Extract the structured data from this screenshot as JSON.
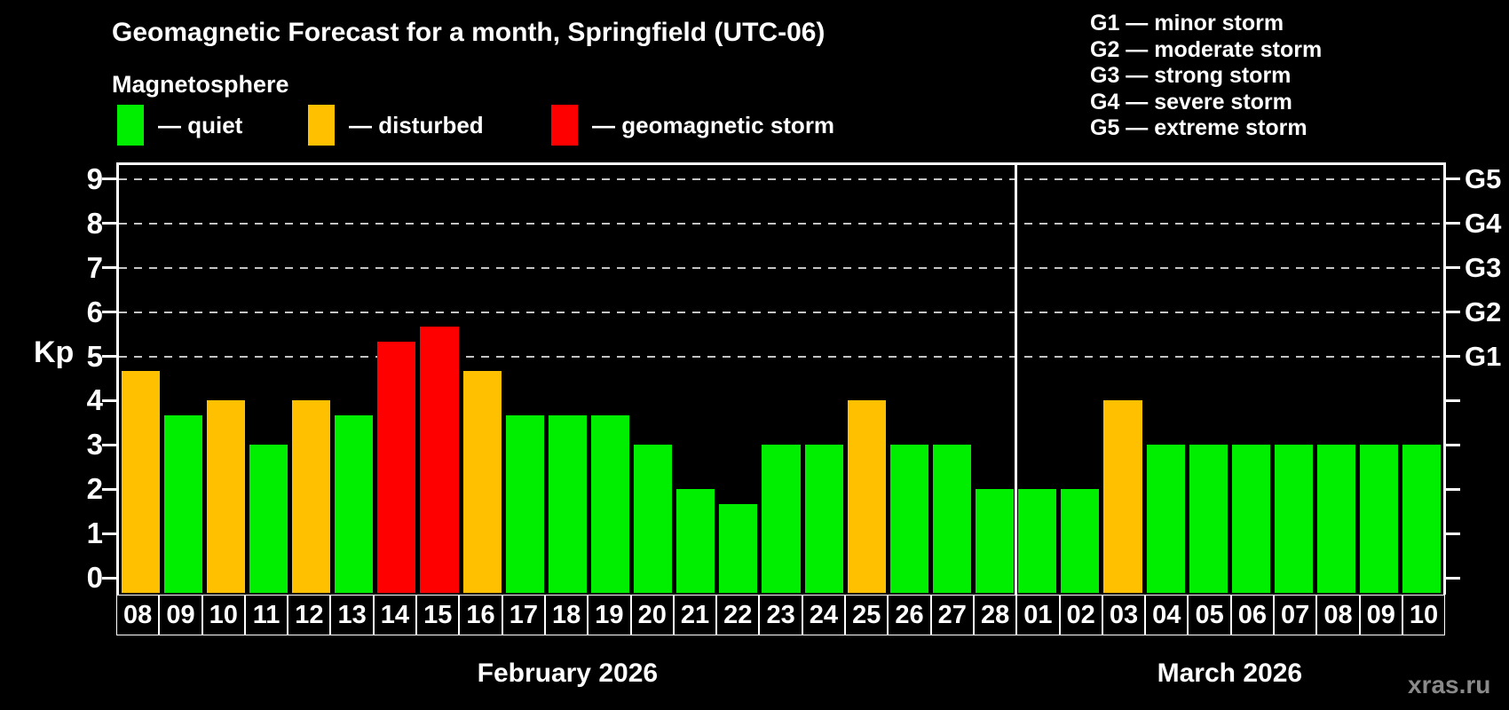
{
  "header": {
    "title": "Geomagnetic Forecast for a month, Springfield (UTC-06)",
    "subtitle": "Magnetosphere"
  },
  "legend": {
    "items": [
      {
        "key": "quiet",
        "label": "— quiet",
        "color": "#00EE00"
      },
      {
        "key": "disturbed",
        "label": "— disturbed",
        "color": "#FFC000"
      },
      {
        "key": "storm",
        "label": "— geomagnetic storm",
        "color": "#FF0000"
      }
    ]
  },
  "g_legend": {
    "items": [
      "G1 — minor storm",
      "G2 — moderate storm",
      "G3 — strong storm",
      "G4 — severe storm",
      "G5 — extreme storm"
    ]
  },
  "watermark": "xras.ru",
  "chart_data": {
    "type": "bar",
    "title": "Geomagnetic Forecast for a month, Springfield (UTC-06)",
    "ylabel": "Kp",
    "ylim": [
      0,
      9
    ],
    "yticks": [
      0,
      1,
      2,
      3,
      4,
      5,
      6,
      7,
      8,
      9
    ],
    "gridlines_at": [
      5,
      6,
      7,
      8,
      9
    ],
    "right_axis_labels": [
      {
        "kp": 5,
        "label": "G1"
      },
      {
        "kp": 6,
        "label": "G2"
      },
      {
        "kp": 7,
        "label": "G3"
      },
      {
        "kp": 8,
        "label": "G4"
      },
      {
        "kp": 9,
        "label": "G5"
      }
    ],
    "categories": [
      "08",
      "09",
      "10",
      "11",
      "12",
      "13",
      "14",
      "15",
      "16",
      "17",
      "18",
      "19",
      "20",
      "21",
      "22",
      "23",
      "24",
      "25",
      "26",
      "27",
      "28",
      "01",
      "02",
      "03",
      "04",
      "05",
      "06",
      "07",
      "08",
      "09",
      "10"
    ],
    "values": [
      4.67,
      3.67,
      4,
      3,
      4,
      3.67,
      5.33,
      5.67,
      4.67,
      3.67,
      3.67,
      3.67,
      3,
      2,
      1.67,
      3,
      3,
      4,
      3,
      3,
      2,
      2,
      2,
      4,
      3,
      3,
      3,
      3,
      3,
      3,
      3
    ],
    "status": [
      "disturbed",
      "quiet",
      "disturbed",
      "quiet",
      "disturbed",
      "quiet",
      "storm",
      "storm",
      "disturbed",
      "quiet",
      "quiet",
      "quiet",
      "quiet",
      "quiet",
      "quiet",
      "quiet",
      "quiet",
      "disturbed",
      "quiet",
      "quiet",
      "quiet",
      "quiet",
      "quiet",
      "disturbed",
      "quiet",
      "quiet",
      "quiet",
      "quiet",
      "quiet",
      "quiet",
      "quiet"
    ],
    "status_colors": {
      "quiet": "#00EE00",
      "disturbed": "#FFC000",
      "storm": "#FF0000"
    },
    "months": [
      {
        "label": "February 2026",
        "from": 0,
        "to": 20
      },
      {
        "label": "March 2026",
        "from": 21,
        "to": 30
      }
    ],
    "grid": "dashed-horizontal",
    "legend_position": "top-left"
  }
}
